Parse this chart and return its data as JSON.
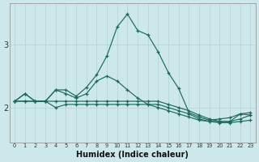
{
  "xlabel": "Humidex (Indice chaleur)",
  "ylabel": "",
  "bg_color": "#cde8ea",
  "grid_color": "#b8d8da",
  "line_color": "#1a6b5a",
  "xlim": [
    -0.5,
    23.5
  ],
  "ylim": [
    1.45,
    3.65
  ],
  "yticks": [
    2,
    3
  ],
  "xticks": [
    0,
    1,
    2,
    3,
    4,
    5,
    6,
    7,
    8,
    9,
    10,
    11,
    12,
    13,
    14,
    15,
    16,
    17,
    18,
    19,
    20,
    21,
    22,
    23
  ],
  "line1_x": [
    0,
    1,
    2,
    3,
    4,
    5,
    6,
    7,
    8,
    9,
    10,
    11,
    12,
    13,
    14,
    15,
    16,
    17,
    18,
    19,
    20,
    21,
    22,
    23
  ],
  "line1_y": [
    2.1,
    2.22,
    2.1,
    2.1,
    2.0,
    2.05,
    2.05,
    2.05,
    2.05,
    2.05,
    2.05,
    2.05,
    2.05,
    2.05,
    2.05,
    2.0,
    1.95,
    1.9,
    1.82,
    1.78,
    1.76,
    1.76,
    1.78,
    1.8
  ],
  "line2_x": [
    0,
    1,
    2,
    3,
    4,
    5,
    6,
    7,
    8,
    9,
    10,
    11,
    12,
    13,
    14,
    15,
    16,
    17,
    18,
    19,
    20,
    21,
    22,
    23
  ],
  "line2_y": [
    2.1,
    2.1,
    2.1,
    2.1,
    2.1,
    2.1,
    2.1,
    2.1,
    2.1,
    2.1,
    2.1,
    2.1,
    2.1,
    2.1,
    2.1,
    2.05,
    2.0,
    1.95,
    1.88,
    1.82,
    1.78,
    1.78,
    1.9,
    1.92
  ],
  "line3_x": [
    0,
    1,
    2,
    3,
    4,
    5,
    6,
    7,
    8,
    9,
    10,
    11,
    12,
    13,
    14,
    15,
    16,
    17,
    18,
    19,
    20,
    21,
    22,
    23
  ],
  "line3_y": [
    2.1,
    2.1,
    2.1,
    2.1,
    2.28,
    2.22,
    2.15,
    2.22,
    2.42,
    2.5,
    2.42,
    2.28,
    2.15,
    2.05,
    2.0,
    1.95,
    1.9,
    1.85,
    1.8,
    1.78,
    1.78,
    1.78,
    1.82,
    1.88
  ],
  "line4_x": [
    0,
    1,
    2,
    3,
    4,
    5,
    6,
    7,
    8,
    9,
    10,
    11,
    12,
    13,
    14,
    15,
    16,
    17,
    18,
    19,
    20,
    21,
    22,
    23
  ],
  "line4_y": [
    2.1,
    2.22,
    2.1,
    2.1,
    2.28,
    2.28,
    2.18,
    2.32,
    2.52,
    2.82,
    3.28,
    3.48,
    3.22,
    3.15,
    2.88,
    2.55,
    2.3,
    1.92,
    1.85,
    1.8,
    1.82,
    1.84,
    1.9,
    1.88
  ]
}
